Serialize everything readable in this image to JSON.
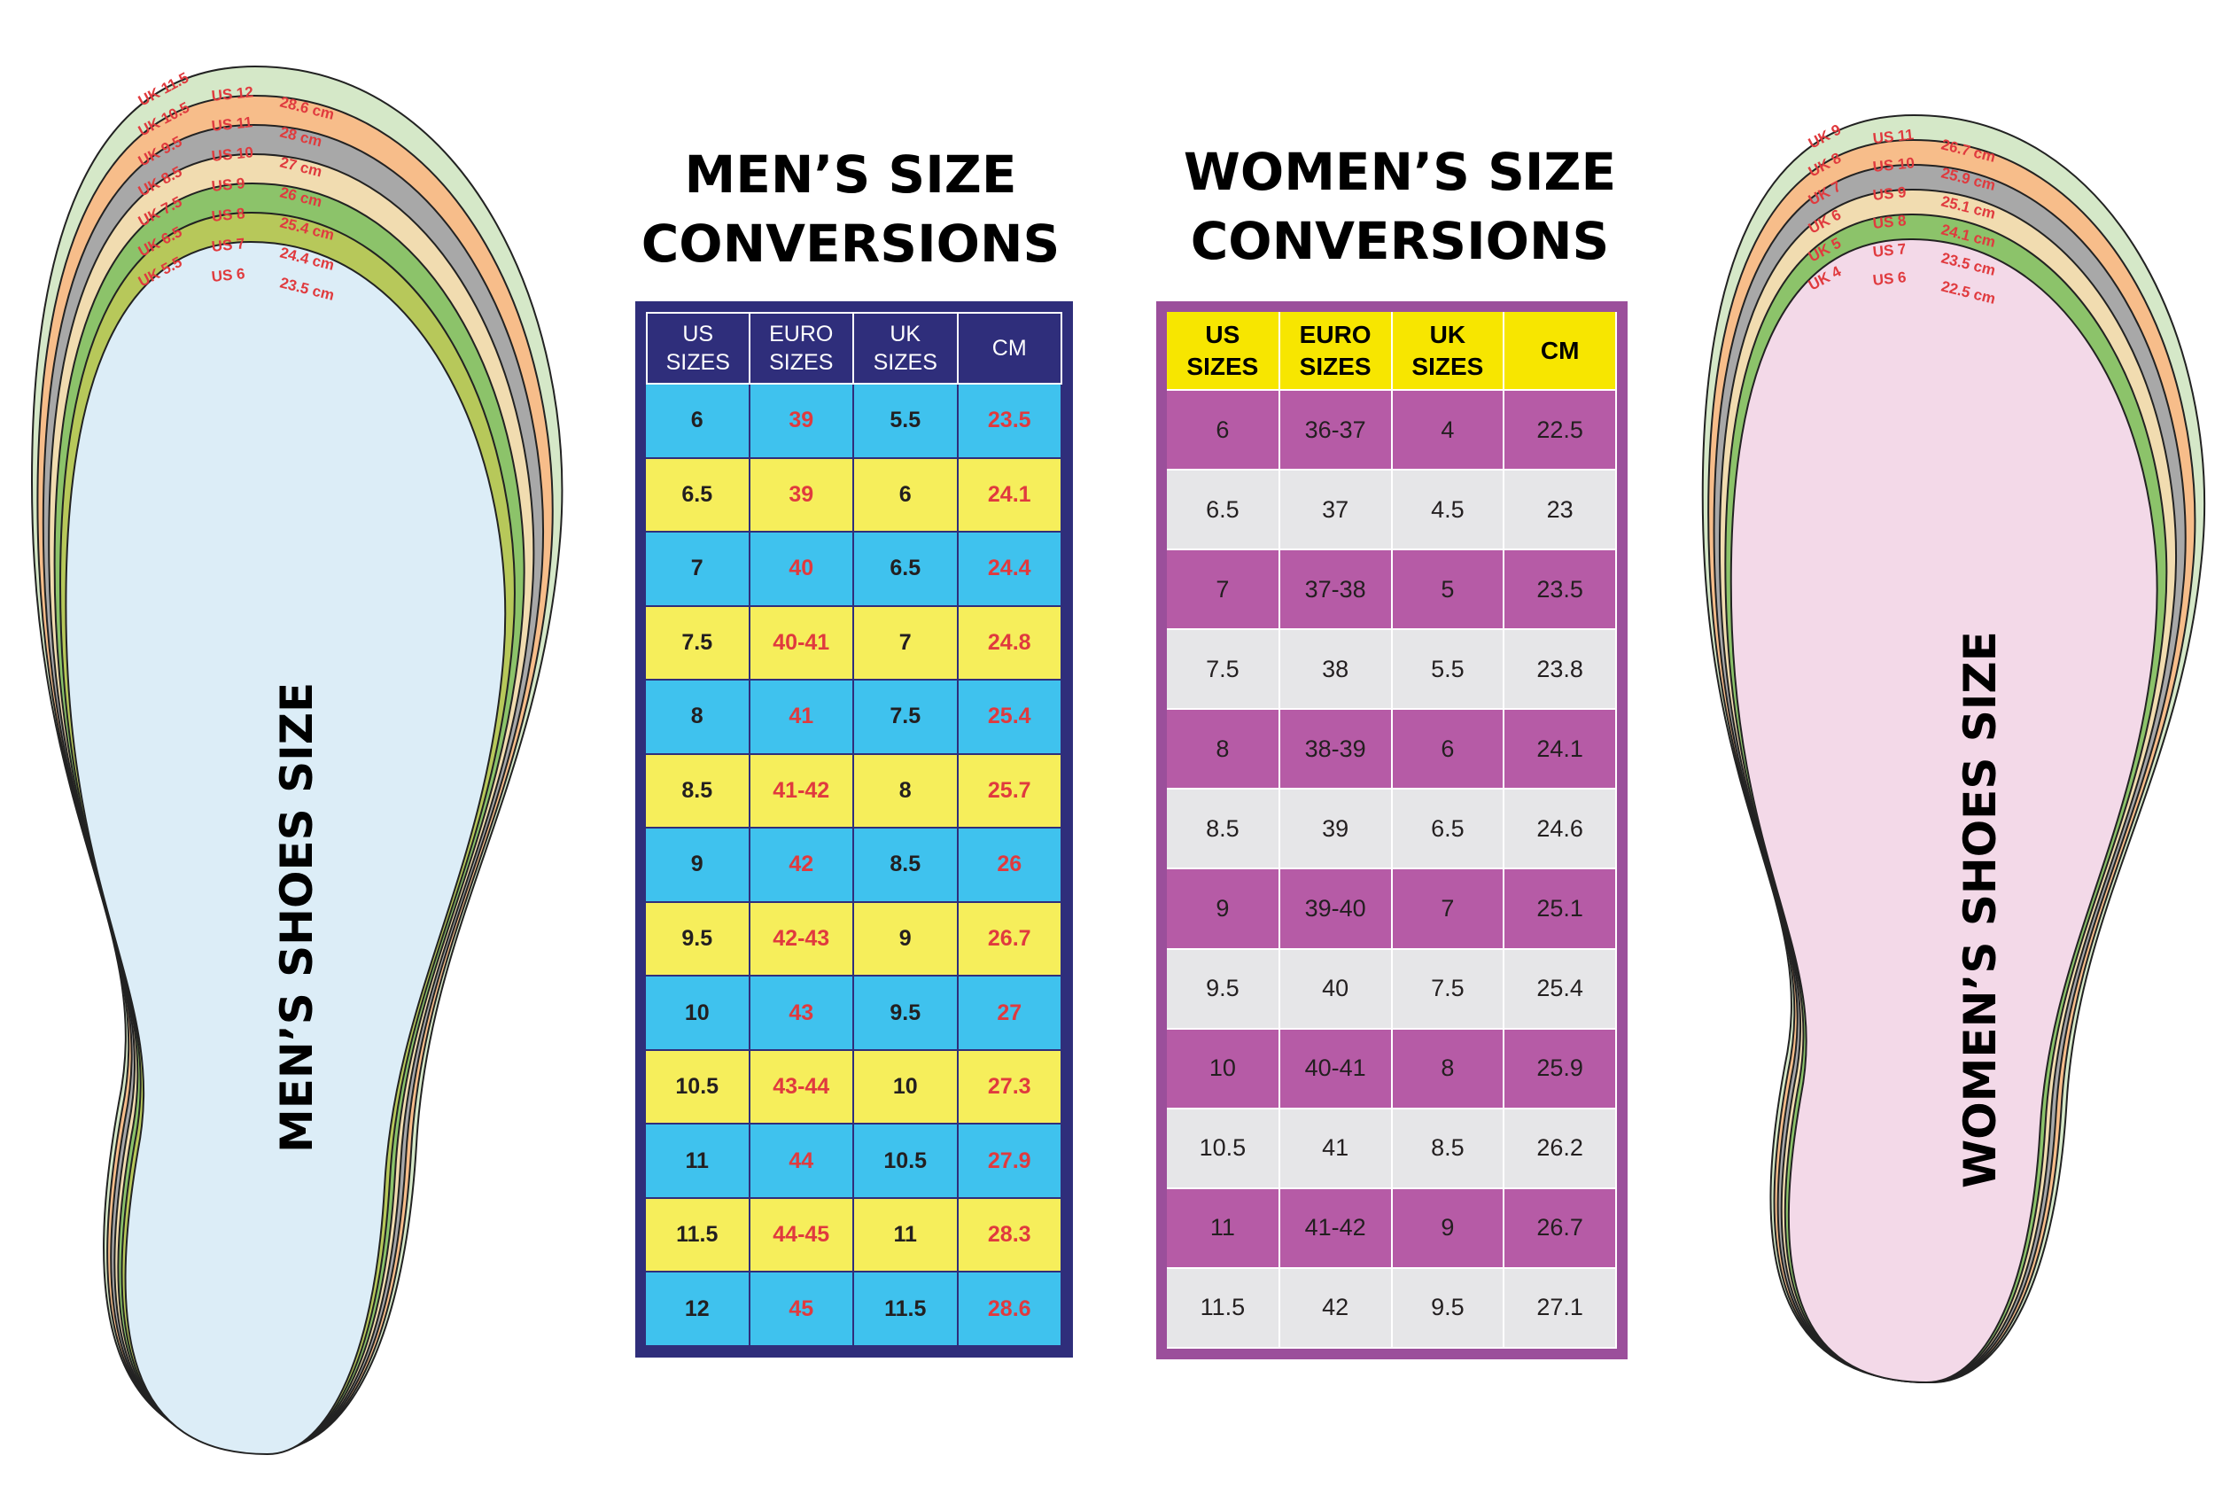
{
  "men_heading": [
    "MEN’S SIZE",
    "CONVERSIONS"
  ],
  "women_heading": [
    "WOMEN’S SIZE",
    "CONVERSIONS"
  ],
  "men_foot_label": "MEN’S SHOES SIZE",
  "women_foot_label": "WOMEN’S SHOES SIZE",
  "men_table": {
    "headers": [
      [
        "US",
        "SIZES"
      ],
      [
        "EURO",
        "SIZES"
      ],
      [
        "UK",
        "SIZES"
      ],
      [
        "CM"
      ]
    ],
    "rows": [
      [
        "6",
        "39",
        "5.5",
        "23.5"
      ],
      [
        "6.5",
        "39",
        "6",
        "24.1"
      ],
      [
        "7",
        "40",
        "6.5",
        "24.4"
      ],
      [
        "7.5",
        "40-41",
        "7",
        "24.8"
      ],
      [
        "8",
        "41",
        "7.5",
        "25.4"
      ],
      [
        "8.5",
        "41-42",
        "8",
        "25.7"
      ],
      [
        "9",
        "42",
        "8.5",
        "26"
      ],
      [
        "9.5",
        "42-43",
        "9",
        "26.7"
      ],
      [
        "10",
        "43",
        "9.5",
        "27"
      ],
      [
        "10.5",
        "43-44",
        "10",
        "27.3"
      ],
      [
        "11",
        "44",
        "10.5",
        "27.9"
      ],
      [
        "11.5",
        "44-45",
        "11",
        "28.3"
      ],
      [
        "12",
        "45",
        "11.5",
        "28.6"
      ]
    ]
  },
  "women_table": {
    "headers": [
      [
        "US",
        "SIZES"
      ],
      [
        "EURO",
        "SIZES"
      ],
      [
        "UK",
        "SIZES"
      ],
      [
        "CM"
      ]
    ],
    "rows": [
      [
        "6",
        "36-37",
        "4",
        "22.5"
      ],
      [
        "6.5",
        "37",
        "4.5",
        "23"
      ],
      [
        "7",
        "37-38",
        "5",
        "23.5"
      ],
      [
        "7.5",
        "38",
        "5.5",
        "23.8"
      ],
      [
        "8",
        "38-39",
        "6",
        "24.1"
      ],
      [
        "8.5",
        "39",
        "6.5",
        "24.6"
      ],
      [
        "9",
        "39-40",
        "7",
        "25.1"
      ],
      [
        "9.5",
        "40",
        "7.5",
        "25.4"
      ],
      [
        "10",
        "40-41",
        "8",
        "25.9"
      ],
      [
        "10.5",
        "41",
        "8.5",
        "26.2"
      ],
      [
        "11",
        "41-42",
        "9",
        "26.7"
      ],
      [
        "11.5",
        "42",
        "9.5",
        "27.1"
      ]
    ]
  },
  "men_outline_labels": [
    [
      "UK 11.5",
      "US 12",
      "28.6 cm"
    ],
    [
      "UK 10.5",
      "US 11",
      "28 cm"
    ],
    [
      "UK 9.5",
      "US 10",
      "27 cm"
    ],
    [
      "UK 8.5",
      "US 9",
      "26 cm"
    ],
    [
      "UK 7.5",
      "US 8",
      "25.4 cm"
    ],
    [
      "UK 6.5",
      "US 7",
      "24.4 cm"
    ],
    [
      "UK 5.5",
      "US 6",
      "23.5 cm"
    ]
  ],
  "women_outline_labels": [
    [
      "UK 9",
      "US 11",
      "26.7 cm"
    ],
    [
      "UK 8",
      "US 10",
      "25.9 cm"
    ],
    [
      "UK 7",
      "US 9",
      "25.1 cm"
    ],
    [
      "UK 6",
      "US 8",
      "24.1 cm"
    ],
    [
      "UK 5",
      "US 7",
      "23.5 cm"
    ],
    [
      "UK 4",
      "US 6",
      "22.5 cm"
    ]
  ],
  "colors": {
    "men_frame": "#2f2e7b",
    "men_row_blue": "#3fc2ee",
    "men_row_yellow": "#f6ee5b",
    "men_red_text": "#e03a3e",
    "women_frame": "#9b4f9b",
    "women_header": "#f7e600",
    "women_row_purple": "#b65ba6",
    "women_row_grey": "#e6e6e8",
    "men_insole": "#dcedf7",
    "women_insole": "#f3d9e8",
    "layer_green_light": "#d5e8c8",
    "layer_orange": "#f7bd8a",
    "layer_grey": "#a8a8a8",
    "layer_beige": "#f1dcb0",
    "layer_green": "#8cc36a",
    "layer_olive": "#b7c85a"
  }
}
